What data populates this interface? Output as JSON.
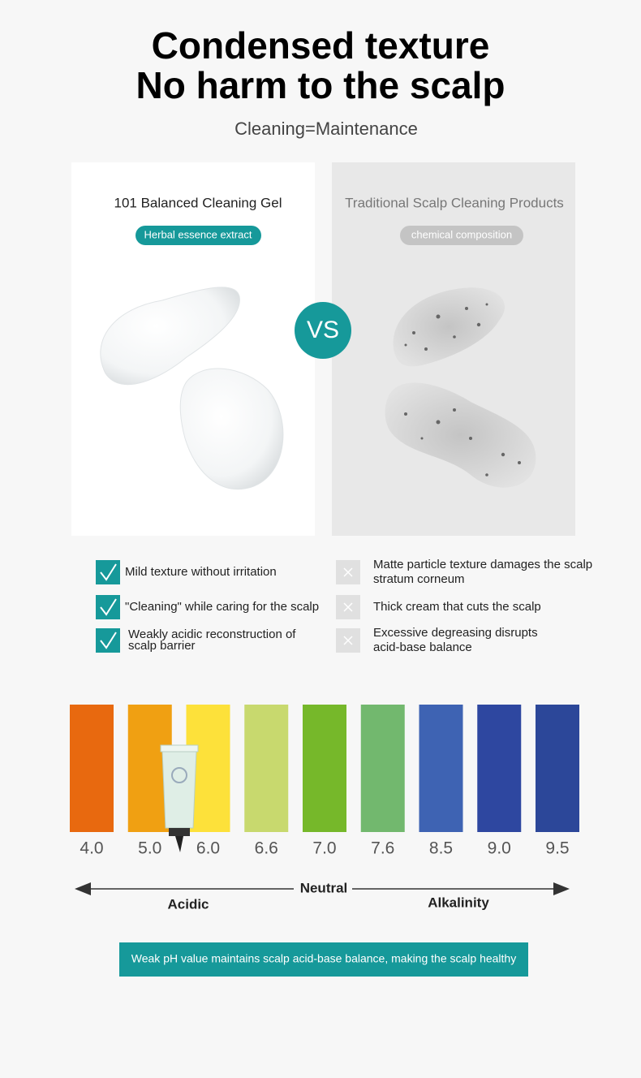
{
  "header": {
    "title_lines": [
      "Condensed texture",
      "No harm to the scalp"
    ],
    "subtitle": "Cleaning=Maintenance"
  },
  "comparison": {
    "left": {
      "title": "101 Balanced Cleaning Gel",
      "badge": "Herbal essence extract"
    },
    "vs": "VS",
    "right": {
      "title": "Traditional Scalp Cleaning Products",
      "badge": "chemical composition"
    }
  },
  "pros": [
    [
      "Mild texture without irritation"
    ],
    [
      "\"Cleaning\" while caring for the scalp"
    ],
    [
      "Weakly acidic reconstruction of",
      "scalp barrier"
    ]
  ],
  "cons": [
    [
      "Matte particle texture damages the scalp",
      "stratum corneum"
    ],
    [
      "Thick cream that cuts the scalp"
    ],
    [
      "Excessive degreasing disrupts",
      "acid-base balance"
    ]
  ],
  "ph_scale": [
    {
      "label": "4.0",
      "color": "#e8690f"
    },
    {
      "label": "5.0",
      "color": "#f0a012"
    },
    {
      "label": "6.0",
      "color": "#fde13a"
    },
    {
      "label": "6.6",
      "color": "#c8d96e"
    },
    {
      "label": "7.0",
      "color": "#76b82a"
    },
    {
      "label": "7.6",
      "color": "#72b86e"
    },
    {
      "label": "8.5",
      "color": "#3e63b3"
    },
    {
      "label": "9.0",
      "color": "#2e47a0"
    },
    {
      "label": "9.5",
      "color": "#2c4799"
    }
  ],
  "axis": {
    "center": "Neutral",
    "left": "Acidic",
    "right": "Alkalinity"
  },
  "footer": "Weak pH value maintains scalp acid-base balance, making the scalp healthy"
}
